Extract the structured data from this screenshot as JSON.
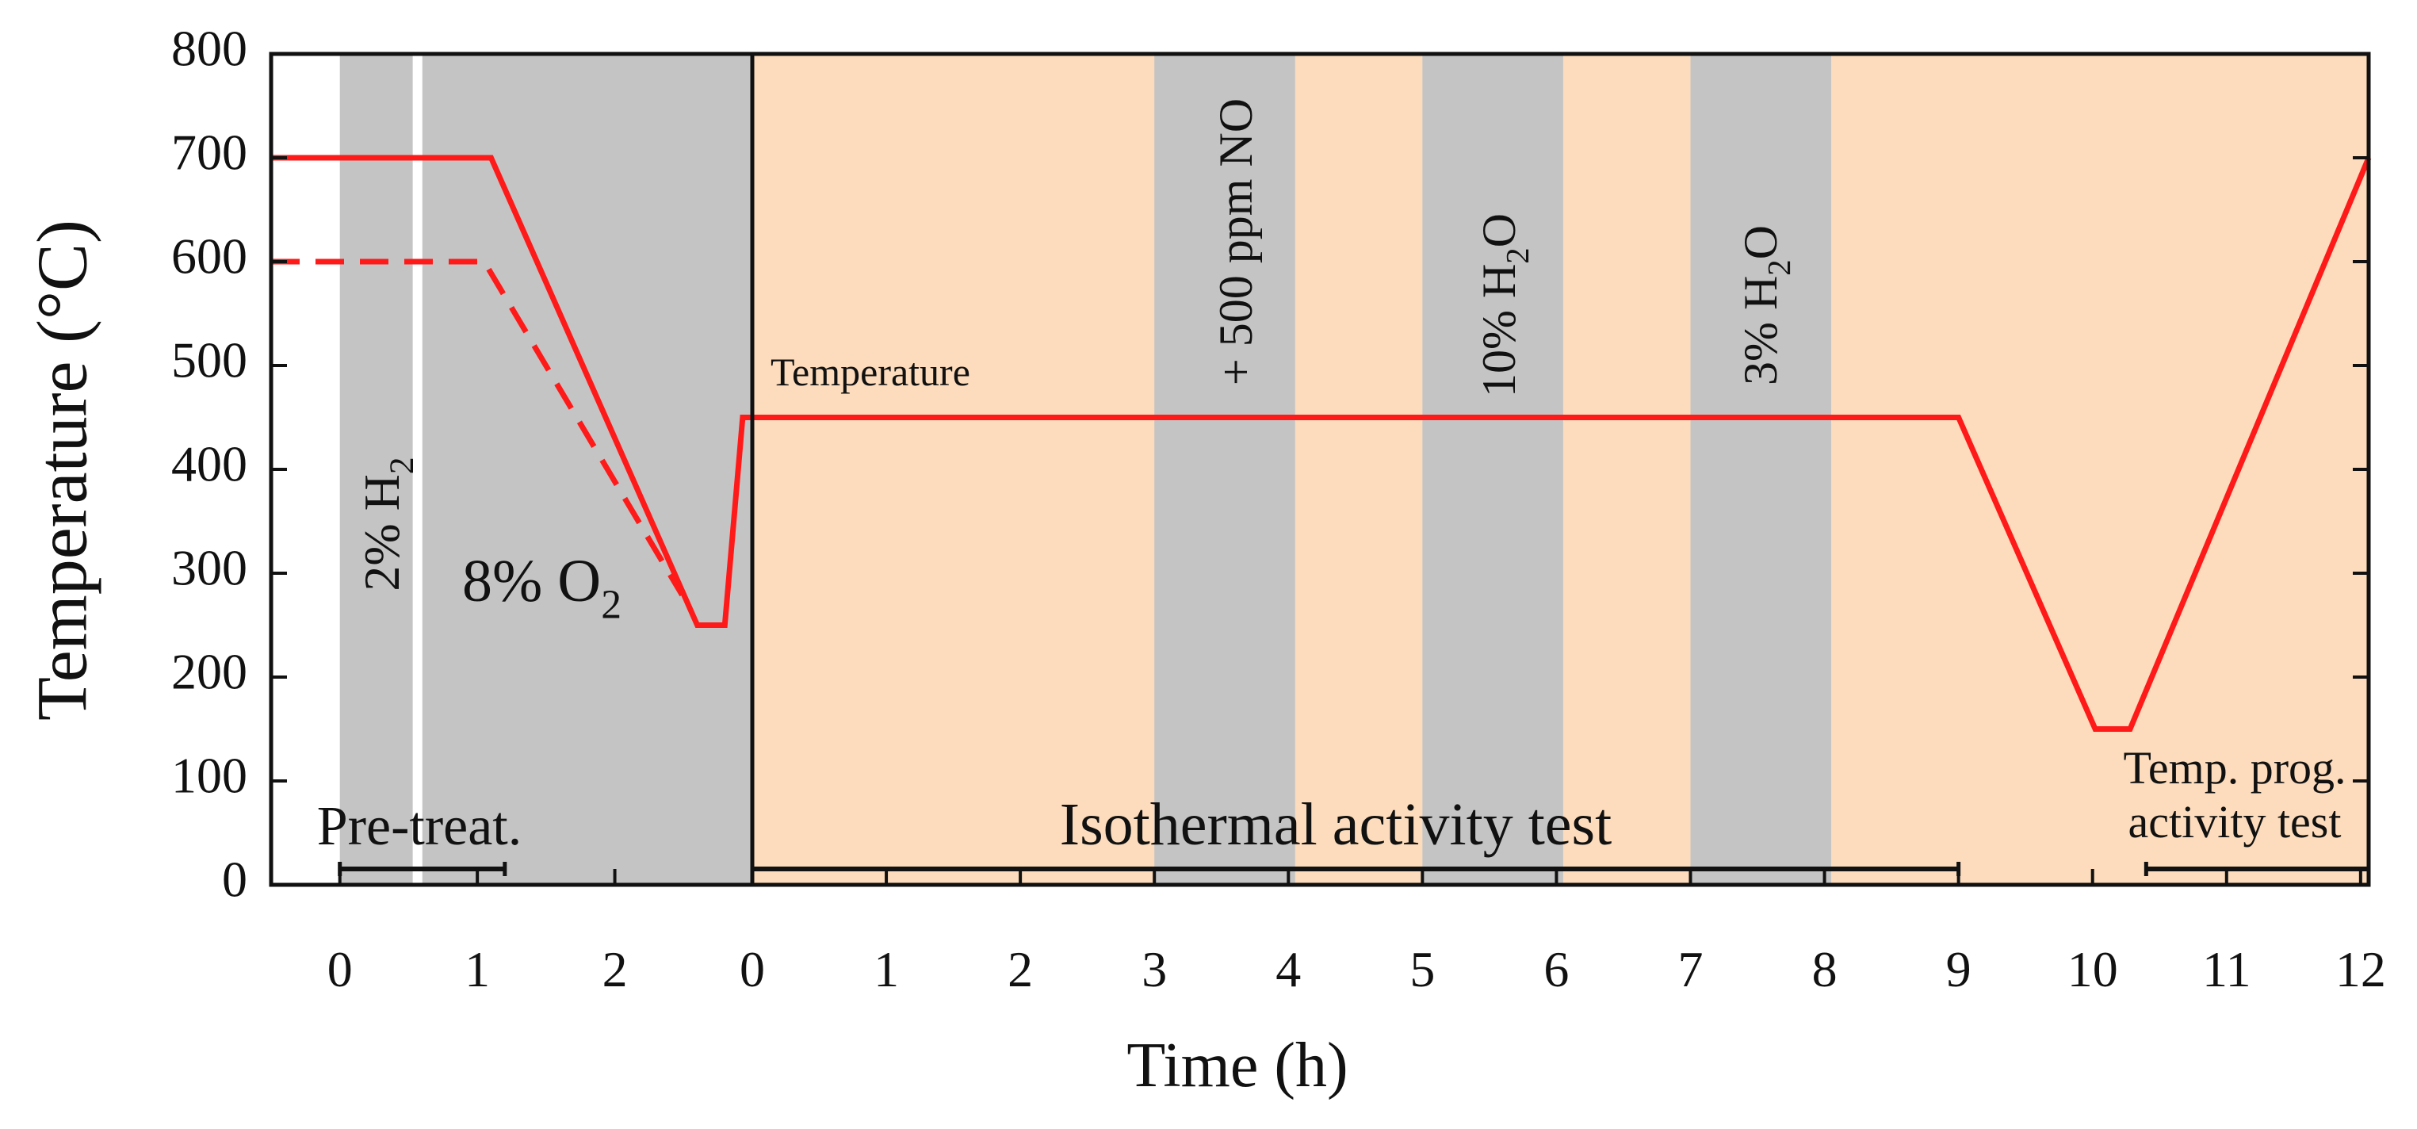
{
  "chart_data": {
    "type": "line",
    "ylabel": "Temperature (°C)",
    "xlabel": "Time (h)",
    "ylim": [
      0,
      800
    ],
    "yticks": [
      0,
      100,
      200,
      300,
      400,
      500,
      600,
      700,
      800
    ],
    "grid": false,
    "band_color": "#c4c4c4",
    "panels": [
      {
        "xlim": [
          -0.5,
          3
        ],
        "xticks": [
          0,
          1,
          2
        ],
        "background": "#ffffff",
        "bands": [
          [
            0,
            0.53
          ],
          [
            0.6,
            3
          ]
        ],
        "series": [
          {
            "color": "#ff1a1a",
            "dash": false,
            "x": [
              -0.5,
              1.1,
              2.6,
              2.8,
              2.93,
              3
            ],
            "values": [
              700,
              700,
              250,
              250,
              450,
              450
            ]
          },
          {
            "color": "#ff1a1a",
            "dash": true,
            "x": [
              -0.5,
              1.05,
              2.49
            ],
            "values": [
              600,
              600,
              279
            ]
          }
        ],
        "annotations": [
          {
            "parts": [
              {
                "t": "2% H"
              },
              {
                "t": "2",
                "sub": true
              }
            ]
          },
          {
            "parts": [
              {
                "t": "8% O"
              },
              {
                "t": "2",
                "sub": true
              }
            ]
          }
        ],
        "brackets": [
          {
            "x": [
              0,
              1.2
            ],
            "label": [
              "Pre-treat."
            ]
          }
        ]
      },
      {
        "xlim": [
          0,
          12.06
        ],
        "xticks": [
          0,
          1,
          2,
          3,
          4,
          5,
          6,
          7,
          8,
          9,
          10,
          11,
          12
        ],
        "background": "#fcdcbc",
        "bands": [
          [
            3,
            4.05
          ],
          [
            5,
            6.05
          ],
          [
            7,
            8.05
          ]
        ],
        "series": [
          {
            "color": "#ff1a1a",
            "dash": false,
            "x": [
              0,
              9,
              10.02,
              10.28,
              12.06
            ],
            "values": [
              450,
              450,
              150,
              150,
              700
            ]
          }
        ],
        "annotations": [
          {
            "parts": [
              {
                "t": "Temperature"
              }
            ],
            "color": "#ff1a1a"
          },
          {
            "parts": [
              {
                "t": "+ 500 ppm NO"
              }
            ]
          },
          {
            "parts": [
              {
                "t": "10% H"
              },
              {
                "t": "2",
                "sub": true
              },
              {
                "t": "O"
              }
            ]
          },
          {
            "parts": [
              {
                "t": "3% H"
              },
              {
                "t": "2",
                "sub": true
              },
              {
                "t": "O"
              }
            ]
          }
        ],
        "brackets": [
          {
            "x": [
              0,
              9
            ],
            "label": [
              "Isothermal activity test"
            ]
          },
          {
            "x": [
              10.4,
              12.06
            ],
            "label": [
              "Temp. prog.",
              "activity test"
            ]
          }
        ]
      }
    ]
  }
}
